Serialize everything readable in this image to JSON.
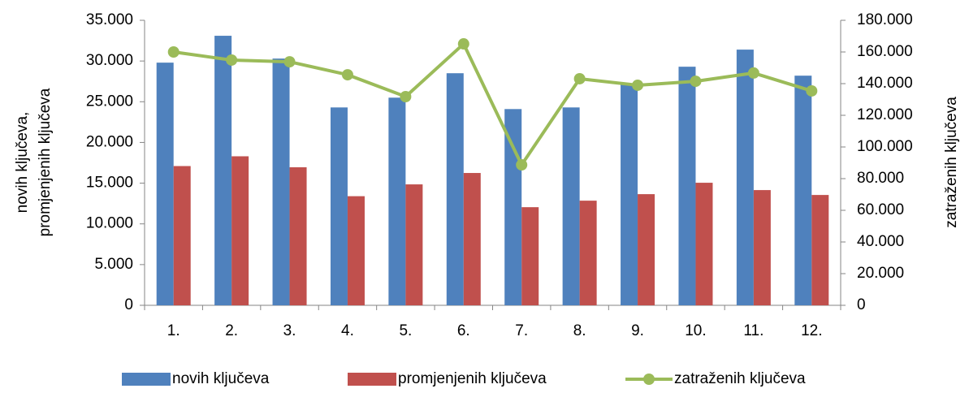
{
  "chart_data": {
    "type": "bar_line",
    "categories": [
      "1.",
      "2.",
      "3.",
      "4.",
      "5.",
      "6.",
      "7.",
      "8.",
      "9.",
      "10.",
      "11.",
      "12."
    ],
    "series": [
      {
        "name": "novih ključeva",
        "color": "#4f81bd",
        "type": "bar",
        "values": [
          29800,
          33100,
          30300,
          24300,
          25500,
          28500,
          24100,
          24300,
          27100,
          29300,
          31400,
          28200
        ]
      },
      {
        "name": "promjenjenih ključeva",
        "color": "#c0504d",
        "type": "bar",
        "values": [
          17100,
          18300,
          16950,
          13400,
          14850,
          16250,
          12050,
          12850,
          13650,
          15050,
          14150,
          13550
        ]
      },
      {
        "name": "zatraženih ključeva",
        "color": "#9bbb59",
        "type": "line",
        "axis": "y2",
        "values": [
          160000,
          154900,
          153800,
          145600,
          131800,
          165100,
          88700,
          143100,
          139000,
          141500,
          146700,
          135400
        ]
      }
    ],
    "ylabel": [
      "novih ključeva,",
      "promjenjenih ključeva"
    ],
    "y2label": "zatraženih ključeva",
    "ylim": [
      0,
      35000
    ],
    "yticks": [
      0,
      {
        "value": 5000,
        "label": "5.000"
      },
      {
        "value": 10000,
        "label": "10.000"
      },
      {
        "value": 15000,
        "label": "15.000"
      },
      {
        "value": 20000,
        "label": "20.000"
      },
      {
        "value": 25000,
        "label": "25.000"
      },
      {
        "value": 30000,
        "label": "30.000"
      },
      {
        "value": 35000,
        "label": "35.000"
      }
    ],
    "y2lim": [
      0,
      180000
    ],
    "y2ticks": [
      0,
      {
        "value": 20000,
        "label": "20.000"
      },
      {
        "value": 40000,
        "label": "40.000"
      },
      {
        "value": 60000,
        "label": "60.000"
      },
      {
        "value": 80000,
        "label": "80.000"
      },
      {
        "value": 100000,
        "label": "100.000"
      },
      {
        "value": 120000,
        "label": "120.000"
      },
      {
        "value": 140000,
        "label": "140.000"
      },
      {
        "value": 160000,
        "label": "160.000"
      },
      {
        "value": 180000,
        "label": "180.000"
      }
    ],
    "legend": "bottom"
  }
}
